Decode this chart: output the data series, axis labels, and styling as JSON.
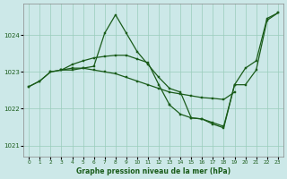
{
  "background_color": "#cce8e8",
  "grid_color": "#99ccbb",
  "line_color": "#1a5c1a",
  "title": "Graphe pression niveau de la mer (hPa)",
  "xlim": [
    -0.5,
    23.5
  ],
  "ylim": [
    1020.7,
    1024.85
  ],
  "yticks": [
    1021,
    1022,
    1023,
    1024
  ],
  "xticks": [
    0,
    1,
    2,
    3,
    4,
    5,
    6,
    7,
    8,
    9,
    10,
    11,
    12,
    13,
    14,
    15,
    16,
    17,
    18,
    19,
    20,
    21,
    22,
    23
  ],
  "series1": {
    "x": [
      0,
      1,
      2,
      3,
      4,
      5,
      6,
      7,
      8,
      9,
      10,
      11,
      12,
      13,
      14,
      15,
      16,
      17,
      18,
      19,
      20,
      21,
      22,
      23
    ],
    "y": [
      1022.6,
      1022.75,
      1023.0,
      1023.05,
      1023.1,
      1023.1,
      1023.15,
      1024.05,
      1024.55,
      1024.05,
      1023.55,
      1023.2,
      1022.85,
      1022.55,
      1022.45,
      1021.75,
      1021.72,
      1021.62,
      1021.52,
      1022.65,
      1023.1,
      1023.3,
      1024.45,
      1024.6
    ]
  },
  "series2": {
    "x": [
      0,
      1,
      2,
      3,
      4,
      5,
      6,
      7,
      8,
      9,
      10,
      11,
      12,
      13,
      14,
      15,
      16,
      17,
      18,
      19
    ],
    "y": [
      1022.6,
      1022.75,
      1023.0,
      1023.05,
      1023.05,
      1023.1,
      1023.05,
      1023.0,
      1022.95,
      1022.85,
      1022.75,
      1022.65,
      1022.55,
      1022.45,
      1022.4,
      1022.35,
      1022.3,
      1022.28,
      1022.25,
      1022.45
    ]
  },
  "series3": {
    "x": [
      3,
      4,
      5,
      6,
      7,
      8,
      9,
      10,
      11,
      12,
      13
    ],
    "y": [
      1023.05,
      1023.2,
      1023.3,
      1023.38,
      1023.42,
      1023.45,
      1023.45,
      1023.35,
      1023.25,
      1022.65,
      1022.1
    ]
  },
  "series4": {
    "x": [
      13,
      14,
      15,
      16,
      17,
      18,
      19,
      20,
      21,
      22,
      23
    ],
    "y": [
      1022.1,
      1021.85,
      1021.75,
      1021.72,
      1021.58,
      1021.48,
      1022.65,
      1022.65,
      1023.05,
      1024.4,
      1024.6
    ]
  }
}
